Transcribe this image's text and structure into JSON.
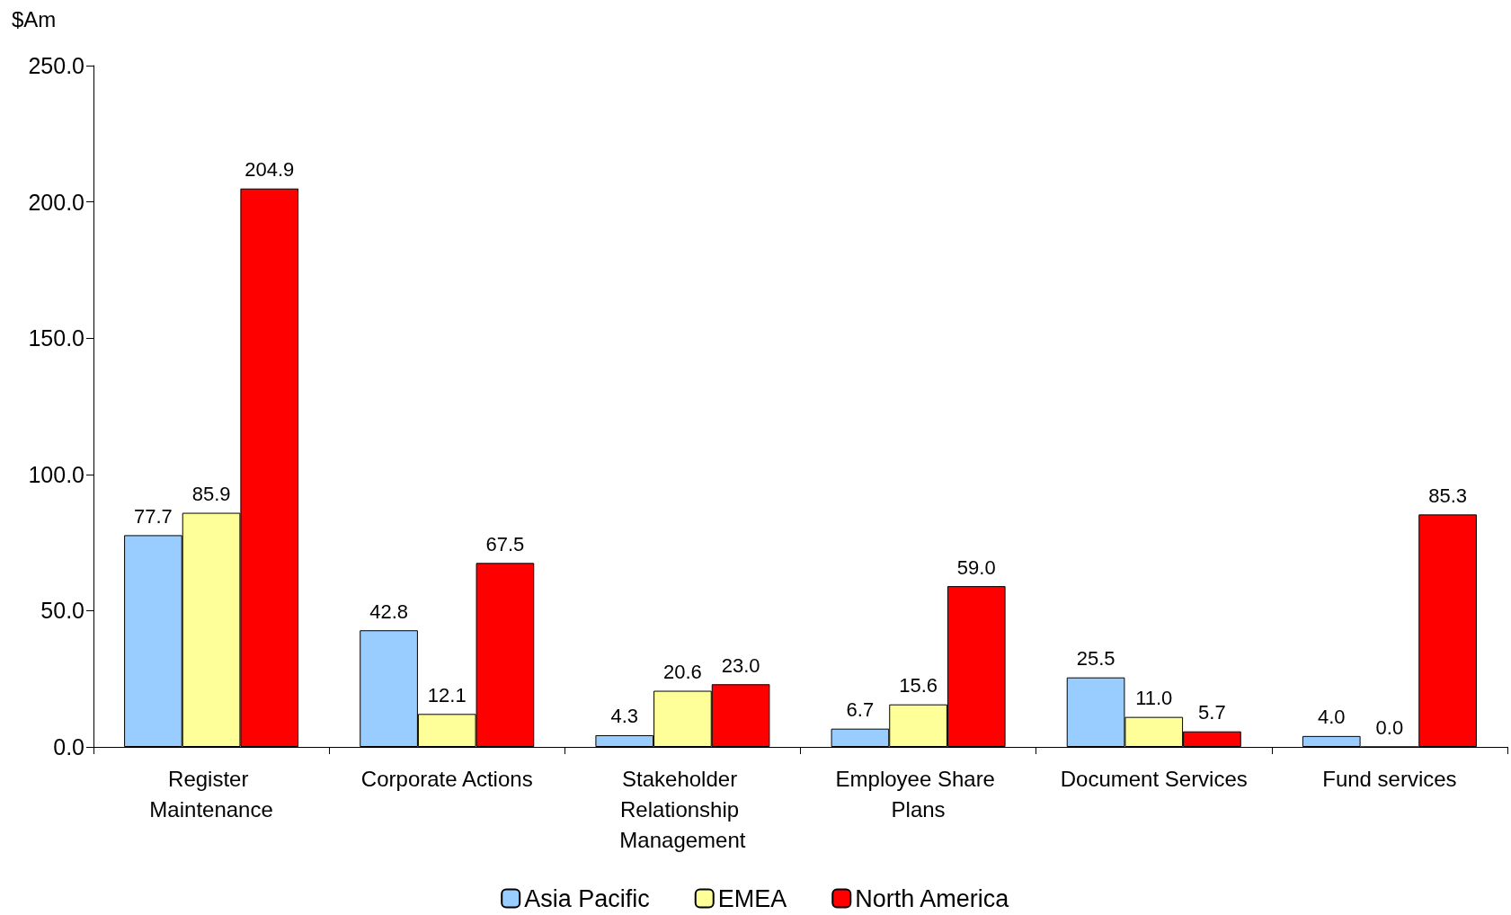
{
  "chart_data": {
    "type": "bar",
    "ylabel": "$Am",
    "categories": [
      "Register Maintenance",
      "Corporate Actions",
      "Stakeholder Relationship Management",
      "Employee Share Plans",
      "Document Services",
      "Fund services"
    ],
    "series": [
      {
        "name": "Asia Pacific",
        "color": "#99ccff",
        "values": [
          77.7,
          42.8,
          4.3,
          6.7,
          25.5,
          4.0
        ],
        "value_labels": [
          "77.7",
          "42.8",
          "4.3",
          "6.7",
          "25.5",
          "4.0"
        ]
      },
      {
        "name": "EMEA",
        "color": "#ffff99",
        "values": [
          85.9,
          12.1,
          20.6,
          15.6,
          11.0,
          0.0
        ],
        "value_labels": [
          "85.9",
          "12.1",
          "20.6",
          "15.6",
          "11.0",
          "0.0"
        ]
      },
      {
        "name": "North America",
        "color": "#ff0000",
        "values": [
          204.9,
          67.5,
          23.0,
          59.0,
          5.7,
          85.3
        ],
        "value_labels": [
          "204.9",
          "67.5",
          "23.0",
          "59.0",
          "5.7",
          "85.3"
        ]
      }
    ],
    "ylim": [
      0,
      250
    ],
    "yticks": [
      {
        "value": 0,
        "label": "0.0"
      },
      {
        "value": 50,
        "label": "50.0"
      },
      {
        "value": 100,
        "label": "100.0"
      },
      {
        "value": 150,
        "label": "150.0"
      },
      {
        "value": 200,
        "label": "200.0"
      },
      {
        "value": 250,
        "label": "250.0"
      }
    ],
    "grid": false,
    "legend": "bottom"
  }
}
